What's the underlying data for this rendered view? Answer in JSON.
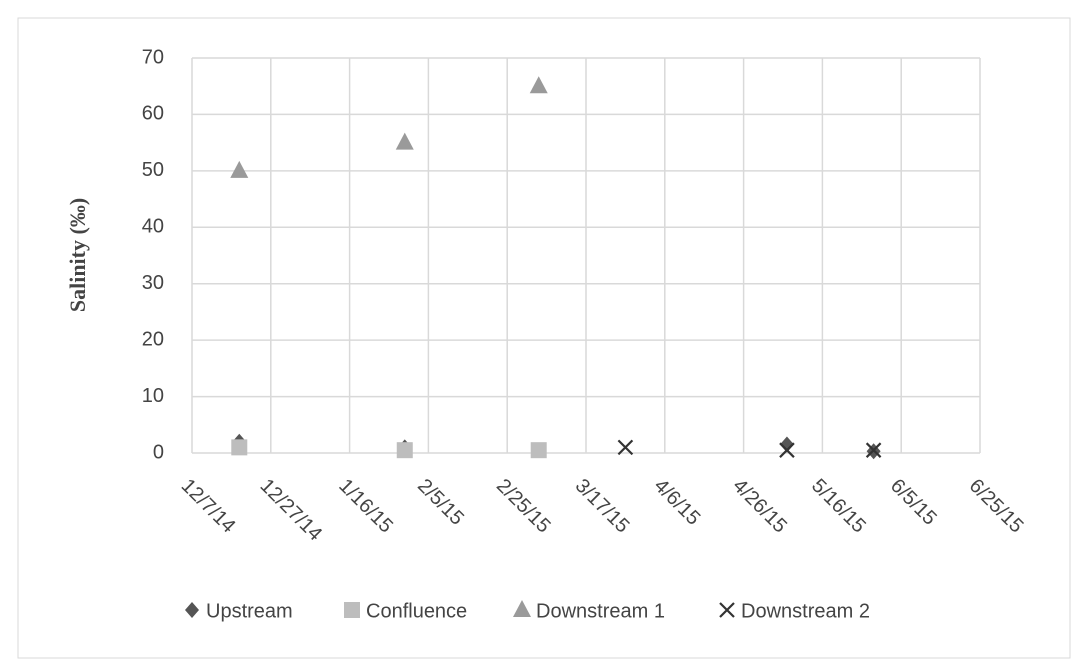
{
  "chart_data": {
    "type": "scatter",
    "y_label": "Salinity (‰)",
    "x": [
      "2014-12-19",
      "2015-01-30",
      "2015-03-05",
      "2015-03-27",
      "2015-05-07",
      "2015-05-29"
    ],
    "series": [
      {
        "name": "Upstream",
        "color": "#555555",
        "marker": "diamond",
        "values": [
          2,
          1,
          null,
          null,
          1.5,
          0.3
        ]
      },
      {
        "name": "Confluence",
        "color": "#bdbdbd",
        "marker": "square",
        "values": [
          1,
          0.5,
          0.5,
          null,
          null,
          null
        ]
      },
      {
        "name": "Downstream 1",
        "color": "#9a9a9a",
        "marker": "triangle",
        "values": [
          50,
          55,
          65,
          null,
          null,
          null
        ]
      },
      {
        "name": "Downstream 2",
        "color": "#333333",
        "marker": "x",
        "values": [
          null,
          null,
          null,
          1,
          0.5,
          0.5
        ]
      }
    ],
    "xlim": [
      "2014-12-07",
      "2015-06-25"
    ],
    "xticks": [
      {
        "value": "2014-12-07",
        "label": "12/7/14"
      },
      {
        "value": "2014-12-27",
        "label": "12/27/14"
      },
      {
        "value": "2015-01-16",
        "label": "1/16/15"
      },
      {
        "value": "2015-02-05",
        "label": "2/5/15"
      },
      {
        "value": "2015-02-25",
        "label": "2/25/15"
      },
      {
        "value": "2015-03-17",
        "label": "3/17/15"
      },
      {
        "value": "2015-04-06",
        "label": "4/6/15"
      },
      {
        "value": "2015-04-26",
        "label": "4/26/15"
      },
      {
        "value": "2015-05-16",
        "label": "5/16/15"
      },
      {
        "value": "2015-06-05",
        "label": "6/5/15"
      },
      {
        "value": "2015-06-25",
        "label": "6/25/15"
      }
    ],
    "ylim": [
      0,
      70
    ],
    "yticks": [
      0,
      10,
      20,
      30,
      40,
      50,
      60,
      70
    ],
    "grid": true,
    "legend": "bottom"
  }
}
